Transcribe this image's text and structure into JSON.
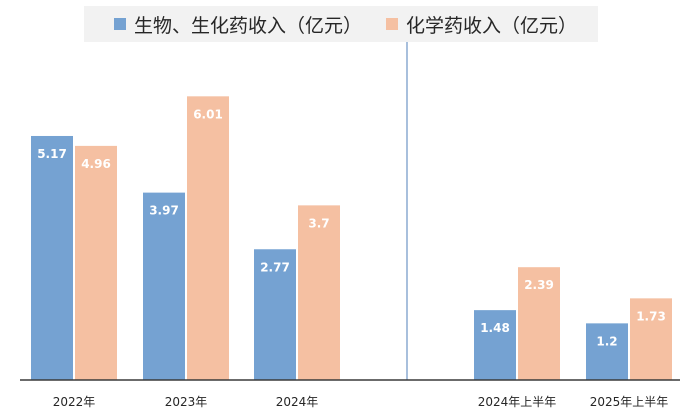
{
  "colors": {
    "series_bio": "#75A2D2",
    "series_chem": "#F5C0A2",
    "axis": "#3a3a3a",
    "divider": "#6f95c6",
    "label_text": "#ffffff",
    "tick_text": "#262626"
  },
  "legend": {
    "bio": "生物、生化药收入（亿元）",
    "chem": "化学药收入（亿元）"
  },
  "chart_data": {
    "type": "bar",
    "categories": [
      "2022年",
      "2023年",
      "2024年",
      "2024年上半年",
      "2025年上半年"
    ],
    "series": [
      {
        "name": "生物、生化药收入（亿元）",
        "values": [
          5.17,
          3.97,
          2.77,
          1.48,
          1.2
        ],
        "labels": [
          "5.17",
          "3.97",
          "2.77",
          "1.48",
          "1.2"
        ]
      },
      {
        "name": "化学药收入（亿元）",
        "values": [
          4.96,
          6.01,
          3.7,
          2.39,
          1.73
        ],
        "labels": [
          "4.96",
          "6.01",
          "3.7",
          "2.39",
          "1.73"
        ]
      }
    ],
    "ylim": [
      0,
      6.5
    ],
    "grid": false,
    "legend_position": "top",
    "divider_after_category": 2
  }
}
